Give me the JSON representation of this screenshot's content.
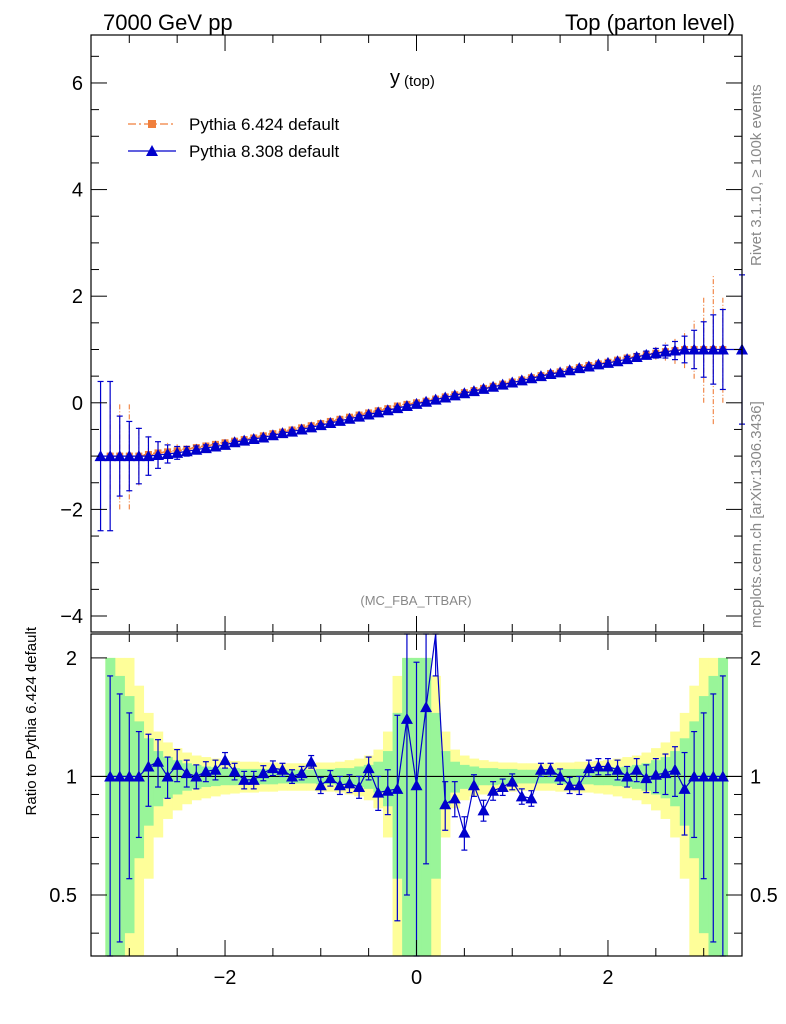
{
  "header": {
    "left": "7000 GeV pp",
    "right": "Top (parton level)"
  },
  "side": {
    "rivet": "Rivet 3.1.10, ≥ 100k events",
    "mcplots": "mcplots.cern.ch [arXiv:1306.3436]"
  },
  "colors": {
    "pythia6": "#f07f3c",
    "pythia8": "#0000cc",
    "band_inner": "#99f599",
    "band_outer": "#fefe99"
  },
  "chart_data": [
    {
      "type": "line",
      "title": "y",
      "title_sub": "(top)",
      "analysis": "(MC_FBA_TTBAR)",
      "xlim": [
        -3.4,
        3.4
      ],
      "ylim": [
        -4.3,
        6.9
      ],
      "yticks": [
        -4,
        -2,
        0,
        2,
        4,
        6
      ],
      "ytick_labels": [
        "−4",
        "−2",
        "0",
        "2",
        "4",
        "6"
      ],
      "legend_position": "top-left",
      "series": [
        {
          "name": "Pythia 6.424 default",
          "marker": "square",
          "style": "dash-dot",
          "x": [
            -3.2,
            -3.1,
            -3.0,
            -2.9,
            -2.8,
            -2.7,
            -2.6,
            -2.5,
            -2.4,
            -2.3,
            -2.2,
            -2.1,
            -2.0,
            -1.9,
            -1.8,
            -1.7,
            -1.6,
            -1.5,
            -1.4,
            -1.3,
            -1.2,
            -1.1,
            -1.0,
            -0.9,
            -0.8,
            -0.7,
            -0.6,
            -0.5,
            -0.4,
            -0.3,
            -0.2,
            -0.1,
            0.0,
            0.1,
            0.2,
            0.3,
            0.4,
            0.5,
            0.6,
            0.7,
            0.8,
            0.9,
            1.0,
            1.1,
            1.2,
            1.3,
            1.4,
            1.5,
            1.6,
            1.7,
            1.8,
            1.9,
            2.0,
            2.1,
            2.2,
            2.3,
            2.4,
            2.5,
            2.6,
            2.7,
            2.8,
            2.9,
            3.0,
            3.1,
            3.2
          ],
          "y": [
            -1.0,
            -1.0,
            -1.0,
            -1.0,
            -0.97,
            -0.94,
            -0.92,
            -0.9,
            -0.87,
            -0.84,
            -0.81,
            -0.78,
            -0.75,
            -0.72,
            -0.69,
            -0.66,
            -0.62,
            -0.58,
            -0.55,
            -0.51,
            -0.47,
            -0.43,
            -0.39,
            -0.35,
            -0.31,
            -0.27,
            -0.23,
            -0.19,
            -0.15,
            -0.11,
            -0.06,
            -0.03,
            0.0,
            0.03,
            0.07,
            0.11,
            0.15,
            0.19,
            0.23,
            0.27,
            0.31,
            0.35,
            0.39,
            0.43,
            0.47,
            0.51,
            0.55,
            0.58,
            0.62,
            0.66,
            0.7,
            0.73,
            0.76,
            0.8,
            0.84,
            0.87,
            0.9,
            0.93,
            0.96,
            0.98,
            1.0,
            1.0,
            1.0,
            1.0,
            1.0
          ],
          "err": [
            1.0,
            1.0,
            1.0,
            0.55,
            0.35,
            0.25,
            0.17,
            0.12,
            0.09,
            0.07,
            0.06,
            0.05,
            0.04,
            0.04,
            0.03,
            0.03,
            0.03,
            0.03,
            0.03,
            0.03,
            0.03,
            0.03,
            0.03,
            0.03,
            0.03,
            0.03,
            0.03,
            0.03,
            0.03,
            0.03,
            0.03,
            0.03,
            0.03,
            0.03,
            0.03,
            0.03,
            0.03,
            0.03,
            0.03,
            0.03,
            0.03,
            0.03,
            0.03,
            0.03,
            0.03,
            0.03,
            0.03,
            0.03,
            0.03,
            0.03,
            0.03,
            0.04,
            0.04,
            0.05,
            0.06,
            0.07,
            0.09,
            0.12,
            0.17,
            0.25,
            0.35,
            0.55,
            1.0,
            1.4,
            1.0
          ]
        },
        {
          "name": "Pythia 8.308 default",
          "marker": "triangle",
          "style": "solid",
          "x": [
            -3.3,
            -3.2,
            -3.1,
            -3.0,
            -2.9,
            -2.8,
            -2.7,
            -2.6,
            -2.5,
            -2.4,
            -2.3,
            -2.2,
            -2.1,
            -2.0,
            -1.9,
            -1.8,
            -1.7,
            -1.6,
            -1.5,
            -1.4,
            -1.3,
            -1.2,
            -1.1,
            -1.0,
            -0.9,
            -0.8,
            -0.7,
            -0.6,
            -0.5,
            -0.4,
            -0.3,
            -0.2,
            -0.1,
            0.0,
            0.1,
            0.2,
            0.3,
            0.4,
            0.5,
            0.6,
            0.7,
            0.8,
            0.9,
            1.0,
            1.1,
            1.2,
            1.3,
            1.4,
            1.5,
            1.6,
            1.7,
            1.8,
            1.9,
            2.0,
            2.1,
            2.2,
            2.3,
            2.4,
            2.5,
            2.6,
            2.7,
            2.8,
            2.9,
            3.0,
            3.1,
            3.2,
            3.4
          ],
          "y": [
            -1.0,
            -1.0,
            -1.0,
            -1.0,
            -1.0,
            -1.0,
            -0.98,
            -0.96,
            -0.94,
            -0.91,
            -0.88,
            -0.85,
            -0.82,
            -0.79,
            -0.74,
            -0.71,
            -0.68,
            -0.65,
            -0.61,
            -0.57,
            -0.54,
            -0.5,
            -0.46,
            -0.42,
            -0.38,
            -0.34,
            -0.3,
            -0.26,
            -0.22,
            -0.18,
            -0.14,
            -0.1,
            -0.06,
            -0.02,
            0.02,
            0.06,
            0.1,
            0.14,
            0.18,
            0.22,
            0.26,
            0.3,
            0.34,
            0.38,
            0.42,
            0.46,
            0.5,
            0.54,
            0.57,
            0.61,
            0.65,
            0.68,
            0.72,
            0.75,
            0.78,
            0.82,
            0.86,
            0.9,
            0.93,
            0.96,
            0.98,
            1.0,
            1.0,
            1.0,
            1.0,
            1.0,
            1.0
          ],
          "err": [
            1.4,
            1.4,
            0.75,
            0.65,
            0.52,
            0.36,
            0.25,
            0.17,
            0.12,
            0.09,
            0.07,
            0.06,
            0.05,
            0.04,
            0.04,
            0.03,
            0.03,
            0.03,
            0.03,
            0.03,
            0.03,
            0.03,
            0.03,
            0.03,
            0.03,
            0.03,
            0.03,
            0.03,
            0.03,
            0.03,
            0.03,
            0.03,
            0.03,
            0.03,
            0.03,
            0.03,
            0.03,
            0.03,
            0.03,
            0.03,
            0.03,
            0.03,
            0.03,
            0.03,
            0.03,
            0.03,
            0.03,
            0.03,
            0.03,
            0.03,
            0.03,
            0.03,
            0.03,
            0.04,
            0.04,
            0.05,
            0.06,
            0.07,
            0.09,
            0.12,
            0.17,
            0.25,
            0.36,
            0.52,
            0.65,
            0.75,
            1.4
          ]
        }
      ]
    },
    {
      "type": "line",
      "ylabel": "Ratio to Pythia 6.424 default",
      "xlim": [
        -3.4,
        3.4
      ],
      "ylim": [
        0.35,
        2.3
      ],
      "yticks": [
        0.5,
        1,
        2
      ],
      "ytick_labels": [
        "0.5",
        "1",
        "2"
      ],
      "xticks": [
        -2,
        0,
        2
      ],
      "xtick_labels": [
        "−2",
        "0",
        "2"
      ],
      "reference": 1,
      "band_x": [
        -3.2,
        -3.1,
        -3.0,
        -2.9,
        -2.8,
        -2.7,
        -2.6,
        -2.5,
        -2.4,
        -2.3,
        -2.2,
        -2.1,
        -2.0,
        -1.9,
        -1.8,
        -1.7,
        -1.6,
        -1.5,
        -1.4,
        -1.3,
        -1.2,
        -1.1,
        -1.0,
        -0.9,
        -0.8,
        -0.7,
        -0.6,
        -0.5,
        -0.4,
        -0.3,
        -0.2,
        -0.1,
        0.0,
        0.1,
        0.2,
        0.3,
        0.4,
        0.5,
        0.6,
        0.7,
        0.8,
        0.9,
        1.0,
        1.1,
        1.2,
        1.3,
        1.4,
        1.5,
        1.6,
        1.7,
        1.8,
        1.9,
        2.0,
        2.1,
        2.2,
        2.3,
        2.4,
        2.5,
        2.6,
        2.7,
        2.8,
        2.9,
        3.0,
        3.1,
        3.2
      ],
      "band_inner": [
        1.0,
        0.8,
        0.6,
        0.38,
        0.25,
        0.16,
        0.12,
        0.1,
        0.08,
        0.07,
        0.06,
        0.055,
        0.05,
        0.05,
        0.045,
        0.045,
        0.045,
        0.045,
        0.04,
        0.04,
        0.04,
        0.04,
        0.045,
        0.045,
        0.05,
        0.05,
        0.06,
        0.07,
        0.09,
        0.16,
        0.45,
        1.0,
        1.0,
        1.0,
        0.45,
        0.16,
        0.09,
        0.07,
        0.06,
        0.05,
        0.05,
        0.045,
        0.045,
        0.04,
        0.04,
        0.04,
        0.04,
        0.045,
        0.045,
        0.045,
        0.045,
        0.05,
        0.05,
        0.055,
        0.06,
        0.07,
        0.08,
        0.1,
        0.12,
        0.16,
        0.25,
        0.38,
        0.6,
        0.8,
        1.0
      ],
      "band_outer": [
        1.0,
        1.0,
        1.0,
        0.7,
        0.45,
        0.3,
        0.22,
        0.18,
        0.15,
        0.13,
        0.12,
        0.11,
        0.1,
        0.095,
        0.09,
        0.09,
        0.085,
        0.085,
        0.08,
        0.08,
        0.08,
        0.08,
        0.085,
        0.085,
        0.09,
        0.1,
        0.11,
        0.13,
        0.17,
        0.3,
        0.8,
        1.0,
        1.0,
        1.0,
        0.8,
        0.3,
        0.17,
        0.13,
        0.11,
        0.1,
        0.09,
        0.085,
        0.085,
        0.08,
        0.08,
        0.08,
        0.08,
        0.085,
        0.085,
        0.09,
        0.09,
        0.095,
        0.1,
        0.11,
        0.12,
        0.13,
        0.15,
        0.18,
        0.22,
        0.3,
        0.45,
        0.7,
        1.0,
        1.0,
        1.0
      ],
      "series": [
        {
          "name": "Pythia 8.308 default",
          "marker": "triangle",
          "x": [
            -3.2,
            -3.1,
            -3.0,
            -2.9,
            -2.8,
            -2.7,
            -2.6,
            -2.5,
            -2.4,
            -2.3,
            -2.2,
            -2.1,
            -2.0,
            -1.9,
            -1.8,
            -1.7,
            -1.6,
            -1.5,
            -1.4,
            -1.3,
            -1.2,
            -1.1,
            -1.0,
            -0.9,
            -0.8,
            -0.7,
            -0.6,
            -0.5,
            -0.4,
            -0.3,
            -0.2,
            -0.1,
            0.0,
            0.1,
            0.2,
            0.3,
            0.4,
            0.5,
            0.6,
            0.7,
            0.8,
            0.9,
            1.0,
            1.1,
            1.2,
            1.3,
            1.4,
            1.5,
            1.6,
            1.7,
            1.8,
            1.9,
            2.0,
            2.1,
            2.2,
            2.3,
            2.4,
            2.5,
            2.6,
            2.7,
            2.8,
            2.9,
            3.0,
            3.1,
            3.2
          ],
          "y": [
            1.0,
            1.0,
            1.0,
            1.0,
            1.06,
            1.09,
            1.0,
            1.07,
            1.02,
            1.0,
            1.03,
            1.04,
            1.1,
            1.03,
            0.98,
            0.98,
            1.02,
            1.05,
            1.04,
            1.0,
            1.02,
            1.09,
            0.95,
            0.99,
            0.95,
            0.96,
            0.94,
            1.05,
            0.91,
            0.92,
            0.93,
            1.4,
            0.95,
            1.5,
            2.3,
            0.85,
            0.88,
            0.72,
            0.95,
            0.82,
            0.92,
            0.94,
            0.97,
            0.89,
            0.88,
            1.04,
            1.04,
            1.0,
            0.95,
            0.95,
            1.05,
            1.06,
            1.06,
            1.04,
            1.0,
            1.04,
            0.99,
            1.01,
            1.02,
            1.04,
            0.93,
            1.0,
            1.0,
            1.0,
            1.0
          ],
          "err": [
            0.8,
            0.62,
            0.45,
            0.3,
            0.22,
            0.15,
            0.12,
            0.1,
            0.08,
            0.07,
            0.06,
            0.06,
            0.05,
            0.05,
            0.05,
            0.05,
            0.045,
            0.045,
            0.04,
            0.04,
            0.04,
            0.04,
            0.045,
            0.045,
            0.05,
            0.05,
            0.06,
            0.07,
            0.09,
            0.12,
            0.5,
            0.9,
            1.0,
            0.9,
            0.5,
            0.12,
            0.09,
            0.07,
            0.06,
            0.05,
            0.05,
            0.045,
            0.045,
            0.04,
            0.04,
            0.04,
            0.04,
            0.045,
            0.045,
            0.05,
            0.05,
            0.05,
            0.05,
            0.06,
            0.06,
            0.07,
            0.08,
            0.1,
            0.12,
            0.15,
            0.22,
            0.3,
            0.45,
            0.62,
            0.8
          ]
        }
      ]
    }
  ]
}
